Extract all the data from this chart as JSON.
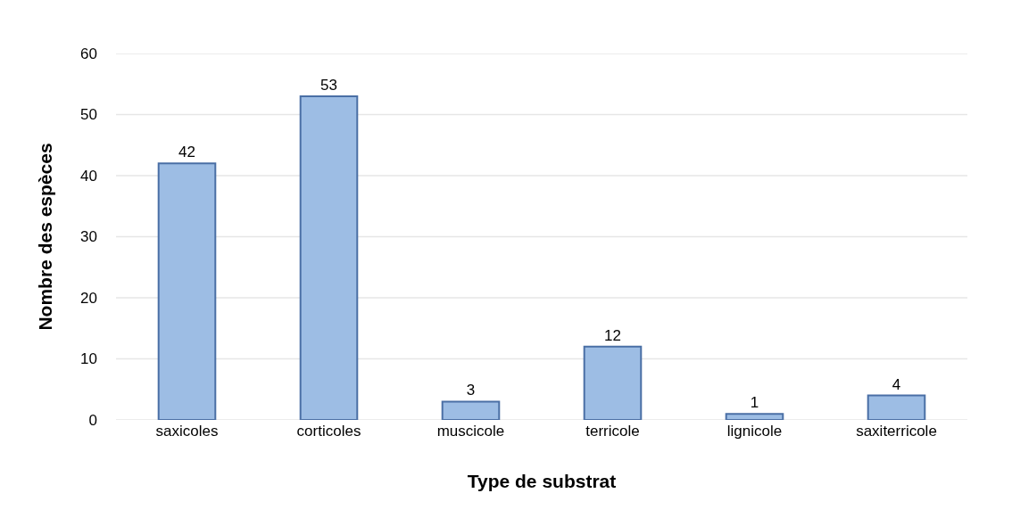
{
  "chart_data": {
    "type": "bar",
    "xlabel": "Type de substrat",
    "ylabel": "Nombre des espèces",
    "categories": [
      "saxicoles",
      "corticoles",
      "muscicole",
      "terricole",
      "lignicole",
      "saxiterricole"
    ],
    "values": [
      42,
      53,
      3,
      12,
      1,
      4
    ],
    "color": "#9dbde4",
    "ylim": [
      0,
      60
    ],
    "yticks": [
      0,
      10,
      20,
      30,
      40,
      50,
      60
    ],
    "grid": "y",
    "data_labels": true
  }
}
